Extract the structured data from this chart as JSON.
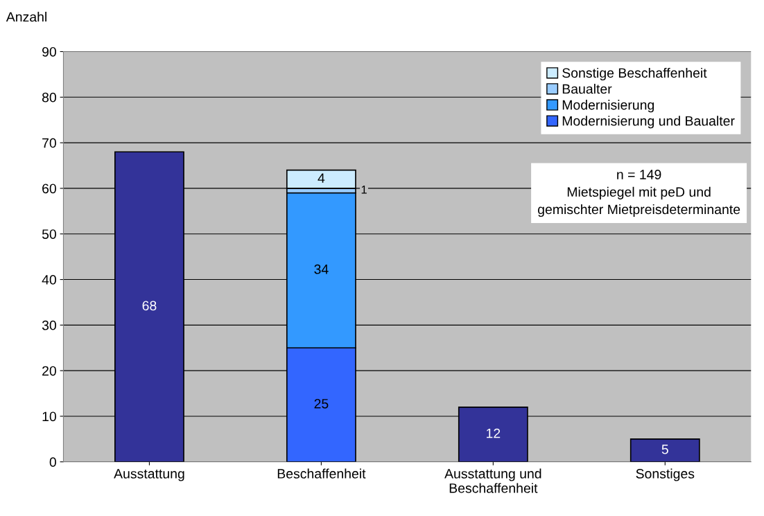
{
  "chart_data": {
    "type": "bar",
    "stacked": true,
    "ylabel": "Anzahl",
    "categories": [
      "Ausstattung",
      "Beschaffenheit",
      "Ausstattung und\nBeschaffenheit",
      "Sonstiges"
    ],
    "series": [
      {
        "color": "#333399",
        "values": [
          68,
          null,
          12,
          5
        ]
      },
      {
        "name": "Modernisierung und Baualter",
        "color": "#3366ff",
        "values": [
          null,
          25,
          null,
          null
        ]
      },
      {
        "name": "Modernisierung",
        "color": "#3399ff",
        "values": [
          null,
          34,
          null,
          null
        ]
      },
      {
        "name": "Baualter",
        "color": "#99ccff",
        "values": [
          null,
          1,
          null,
          null
        ]
      },
      {
        "name": "Sonstige Beschaffenheit",
        "color": "#ccecff",
        "values": [
          null,
          4,
          null,
          null
        ]
      }
    ],
    "ylim": [
      0,
      90
    ],
    "yticks": [
      0,
      10,
      20,
      30,
      40,
      50,
      60,
      70,
      80,
      90
    ],
    "grid": "y",
    "legend": "top right",
    "data_labels": true,
    "annotations": [
      "n = 149\nMietspiegel mit peD und\ngemischter Mietpreisdeterminante"
    ]
  }
}
